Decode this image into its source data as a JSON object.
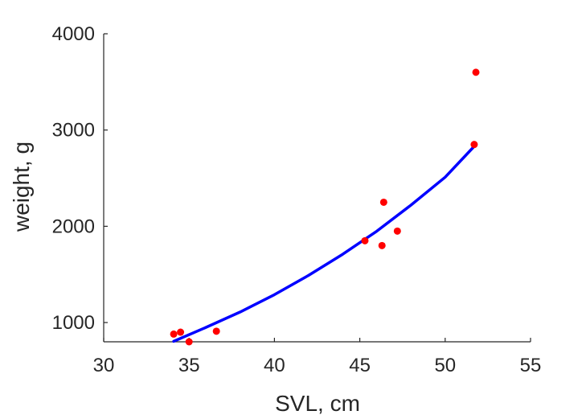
{
  "chart_data": {
    "type": "scatter",
    "title": "",
    "xlabel": "SVL, cm",
    "ylabel": "weight, g",
    "xlim": [
      30,
      55
    ],
    "ylim": [
      800,
      4000
    ],
    "x_ticks": [
      30,
      35,
      40,
      45,
      50,
      55
    ],
    "y_ticks": [
      1000,
      2000,
      3000,
      4000
    ],
    "grid": false,
    "series": [
      {
        "type": "scatter",
        "color": "#ff0000",
        "points": [
          {
            "x": 34.1,
            "y": 880
          },
          {
            "x": 34.5,
            "y": 900
          },
          {
            "x": 35.0,
            "y": 800
          },
          {
            "x": 36.6,
            "y": 910
          },
          {
            "x": 45.3,
            "y": 1850
          },
          {
            "x": 46.3,
            "y": 1800
          },
          {
            "x": 46.4,
            "y": 2250
          },
          {
            "x": 47.2,
            "y": 1950
          },
          {
            "x": 51.7,
            "y": 2850
          },
          {
            "x": 51.8,
            "y": 3600
          }
        ]
      },
      {
        "type": "line",
        "color": "#0000ff",
        "points": [
          {
            "x": 34.1,
            "y": 805
          },
          {
            "x": 36.0,
            "y": 950
          },
          {
            "x": 38.0,
            "y": 1110
          },
          {
            "x": 40.0,
            "y": 1290
          },
          {
            "x": 42.0,
            "y": 1490
          },
          {
            "x": 44.0,
            "y": 1710
          },
          {
            "x": 46.0,
            "y": 1950
          },
          {
            "x": 48.0,
            "y": 2220
          },
          {
            "x": 50.0,
            "y": 2510
          },
          {
            "x": 51.7,
            "y": 2830
          }
        ]
      }
    ]
  }
}
